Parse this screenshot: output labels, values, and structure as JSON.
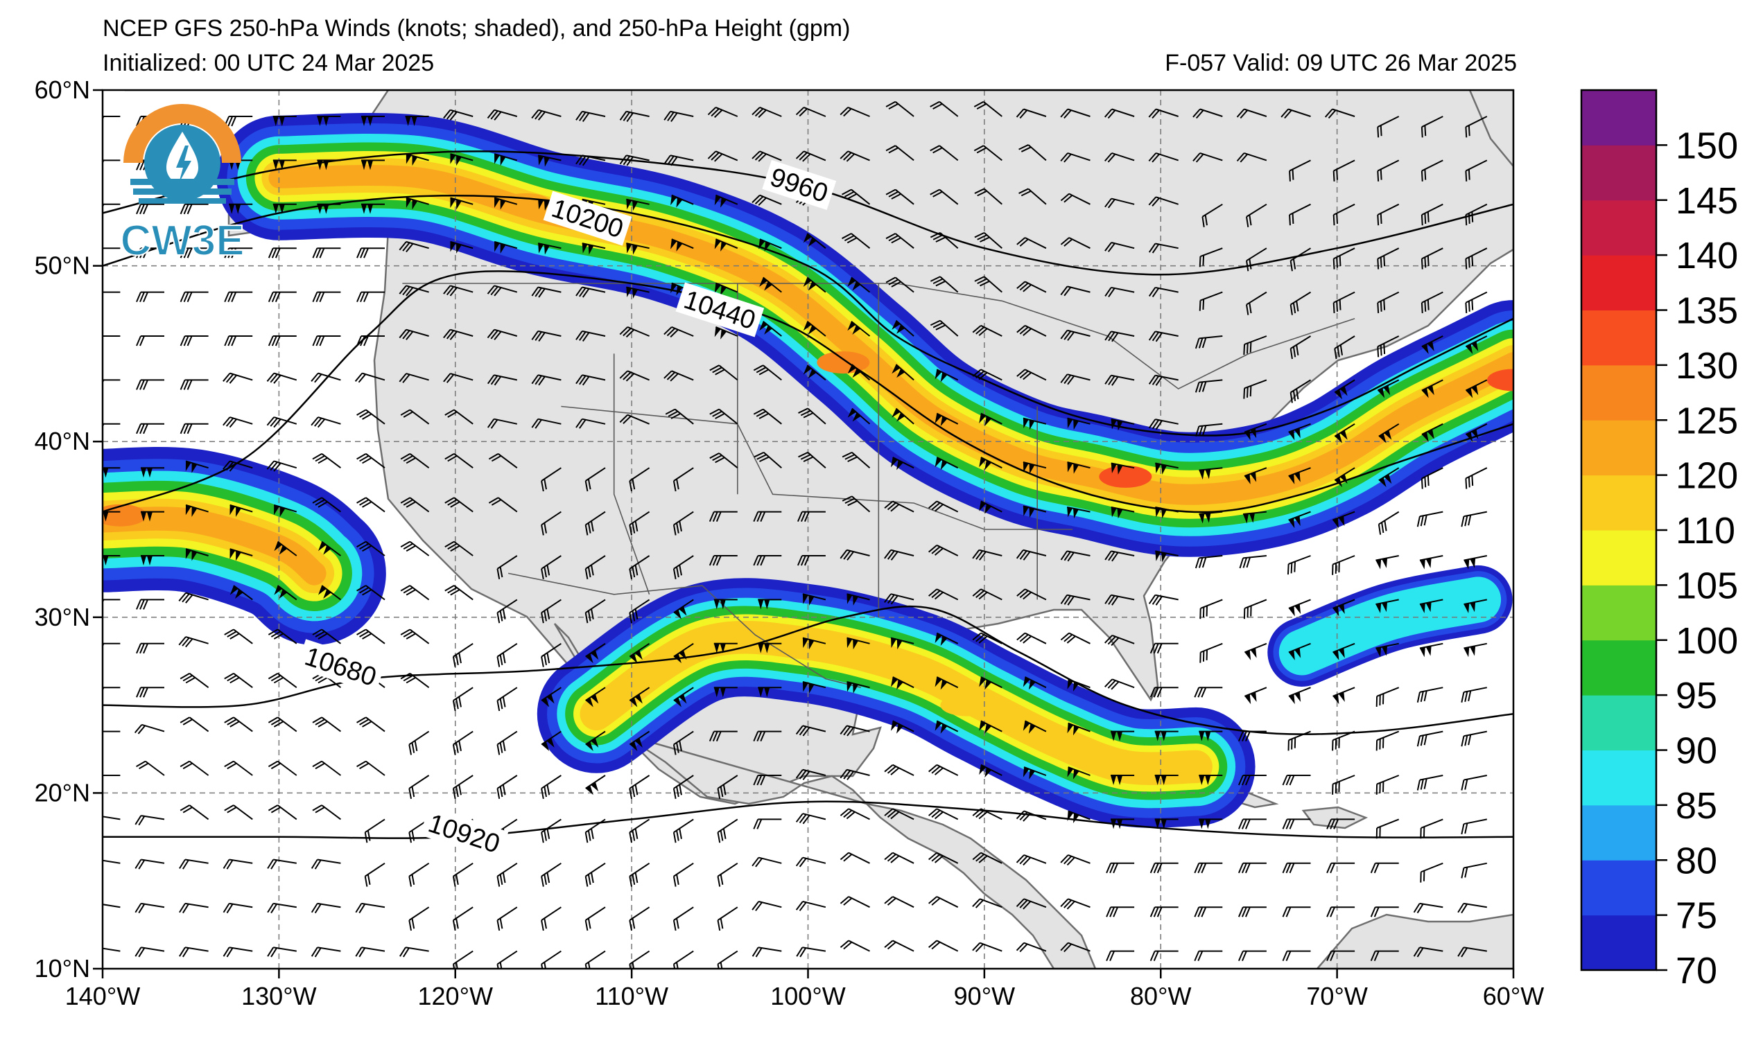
{
  "header": {
    "title": "NCEP GFS 250-hPa Winds (knots; shaded), and 250-hPa Height (gpm)",
    "initialized": "Initialized: 00 UTC 24 Mar 2025",
    "forecast": "F-057  Valid: 09 UTC 26 Mar 2025"
  },
  "logo": {
    "text": "CW3E",
    "ring_color": "#f0922f",
    "water_color": "#2a8fb8"
  },
  "map": {
    "lon_range": [
      -140,
      -60
    ],
    "lat_range": [
      10,
      60
    ],
    "lat_ticks": [
      {
        "value": 60,
        "label": "60°N"
      },
      {
        "value": 50,
        "label": "50°N"
      },
      {
        "value": 40,
        "label": "40°N"
      },
      {
        "value": 30,
        "label": "30°N"
      },
      {
        "value": 20,
        "label": "20°N"
      },
      {
        "value": 10,
        "label": "10°N"
      }
    ],
    "lon_ticks": [
      {
        "value": -140,
        "label": "140°W"
      },
      {
        "value": -130,
        "label": "130°W"
      },
      {
        "value": -120,
        "label": "120°W"
      },
      {
        "value": -110,
        "label": "110°W"
      },
      {
        "value": -100,
        "label": "100°W"
      },
      {
        "value": -90,
        "label": "90°W"
      },
      {
        "value": -80,
        "label": "80°W"
      },
      {
        "value": -70,
        "label": "70°W"
      },
      {
        "value": -60,
        "label": "60°W"
      }
    ],
    "gridlines": true,
    "land_color": "#e3e3e3",
    "ocean_color": "#ffffff",
    "height_contours": [
      {
        "value": 9960,
        "label": "9960",
        "label_at": [
          -100.5,
          54.6
        ],
        "points": [
          [
            -140,
            53
          ],
          [
            -130,
            55.5
          ],
          [
            -120,
            56.5
          ],
          [
            -110,
            56
          ],
          [
            -100,
            54.5
          ],
          [
            -90,
            51
          ],
          [
            -80,
            49.5
          ],
          [
            -70,
            51
          ],
          [
            -60,
            53.5
          ]
        ]
      },
      {
        "value": 10200,
        "label": "10200",
        "label_at": [
          -112.5,
          52.7
        ],
        "points": [
          [
            -140,
            50
          ],
          [
            -130,
            53
          ],
          [
            -120,
            54
          ],
          [
            -110,
            53
          ],
          [
            -100,
            50
          ],
          [
            -95,
            46
          ],
          [
            -90,
            43.5
          ],
          [
            -85,
            41.5
          ],
          [
            -80,
            40.5
          ],
          [
            -75,
            40.5
          ],
          [
            -70,
            42
          ],
          [
            -65,
            44.5
          ],
          [
            -60,
            47
          ]
        ]
      },
      {
        "value": 10440,
        "label": "10440",
        "label_at": [
          -105,
          47.5
        ],
        "points": [
          [
            -140,
            36
          ],
          [
            -132,
            39
          ],
          [
            -125,
            46
          ],
          [
            -120,
            49.5
          ],
          [
            -110,
            49
          ],
          [
            -102,
            47
          ],
          [
            -97,
            44
          ],
          [
            -92,
            40.5
          ],
          [
            -87,
            38
          ],
          [
            -82,
            36.5
          ],
          [
            -77,
            36
          ],
          [
            -72,
            37
          ],
          [
            -66,
            39
          ],
          [
            -60,
            41
          ]
        ]
      },
      {
        "value": 10680,
        "label": "10680",
        "label_at": [
          -126.5,
          27.2
        ],
        "points": [
          [
            -140,
            25
          ],
          [
            -132,
            25
          ],
          [
            -125,
            26.5
          ],
          [
            -115,
            27
          ],
          [
            -105,
            28
          ],
          [
            -98,
            30
          ],
          [
            -93,
            30.5
          ],
          [
            -88,
            28
          ],
          [
            -82,
            25
          ],
          [
            -75,
            23.5
          ],
          [
            -68,
            23.5
          ],
          [
            -60,
            24.5
          ]
        ]
      },
      {
        "value": 10920,
        "label": "10920",
        "label_at": [
          -119.5,
          17.7
        ],
        "points": [
          [
            -140,
            17.5
          ],
          [
            -130,
            17.5
          ],
          [
            -120,
            17.5
          ],
          [
            -110,
            18.5
          ],
          [
            -100,
            19.5
          ],
          [
            -90,
            19
          ],
          [
            -80,
            18
          ],
          [
            -70,
            17.5
          ],
          [
            -60,
            17.5
          ]
        ]
      }
    ]
  },
  "chart_data": {
    "type": "heatmap",
    "quantity": "250-hPa wind speed (knots)",
    "x": "longitude (°W negative)",
    "y": "latitude (°N)",
    "jet_streaks": [
      {
        "name": "",
        "points": [
          [
            -130,
            55
          ],
          [
            -122,
            55
          ],
          [
            -115,
            53
          ],
          [
            -108,
            51.5
          ],
          [
            -102,
            49
          ],
          [
            -97,
            45
          ],
          [
            -93,
            41.5
          ],
          [
            -88,
            39
          ],
          [
            -84,
            38
          ],
          [
            -79,
            37
          ],
          [
            -74,
            37.5
          ],
          [
            -70,
            39
          ],
          [
            -66,
            41.5
          ],
          [
            -62,
            43.5
          ],
          [
            -60,
            44.5
          ]
        ],
        "peaks": [
          {
            "lon": -82,
            "lat": 38,
            "speed": 130
          },
          {
            "lon": -98,
            "lat": 44.5,
            "speed": 125
          },
          {
            "lon": -116,
            "lat": 53.5,
            "speed": 120
          },
          {
            "lon": -60,
            "lat": 43.5,
            "speed": 130
          }
        ]
      },
      {
        "name": "",
        "points": [
          [
            -140,
            35.5
          ],
          [
            -135,
            35.5
          ],
          [
            -130,
            34
          ],
          [
            -128,
            32.5
          ]
        ],
        "peaks": [
          {
            "lon": -139,
            "lat": 35.8,
            "speed": 125
          }
        ]
      },
      {
        "name": "",
        "points": [
          [
            -112,
            24.5
          ],
          [
            -106,
            28.5
          ],
          [
            -100,
            28.5
          ],
          [
            -94,
            27
          ],
          [
            -90,
            25
          ],
          [
            -86,
            23
          ],
          [
            -82,
            21.5
          ],
          [
            -78,
            21.5
          ]
        ],
        "peaks": [
          {
            "lon": -91,
            "lat": 25,
            "speed": 110
          }
        ]
      },
      {
        "name": "",
        "points": [
          [
            -72,
            28
          ],
          [
            -67,
            30
          ],
          [
            -62,
            31
          ]
        ],
        "peaks": [
          {
            "lon": -66,
            "lat": 30.5,
            "speed": 85
          }
        ]
      }
    ],
    "colorbar": {
      "min": 70,
      "max": 155,
      "levels": [
        70,
        75,
        80,
        85,
        90,
        95,
        100,
        105,
        110,
        120,
        125,
        130,
        135,
        140,
        145,
        150,
        155
      ],
      "colors": [
        "#1c22c6",
        "#2448e6",
        "#27a6f2",
        "#2be6ee",
        "#2ad9a8",
        "#25bd2d",
        "#77d42a",
        "#f4f324",
        "#f9cc1f",
        "#f9a81d",
        "#f8861f",
        "#f74f20",
        "#e42127",
        "#c61d45",
        "#a51a59",
        "#761b8a"
      ],
      "tick_labels": [
        "70",
        "75",
        "80",
        "85",
        "90",
        "95",
        "100",
        "105",
        "110",
        "120",
        "125",
        "130",
        "135",
        "140",
        "145",
        "150"
      ]
    }
  }
}
